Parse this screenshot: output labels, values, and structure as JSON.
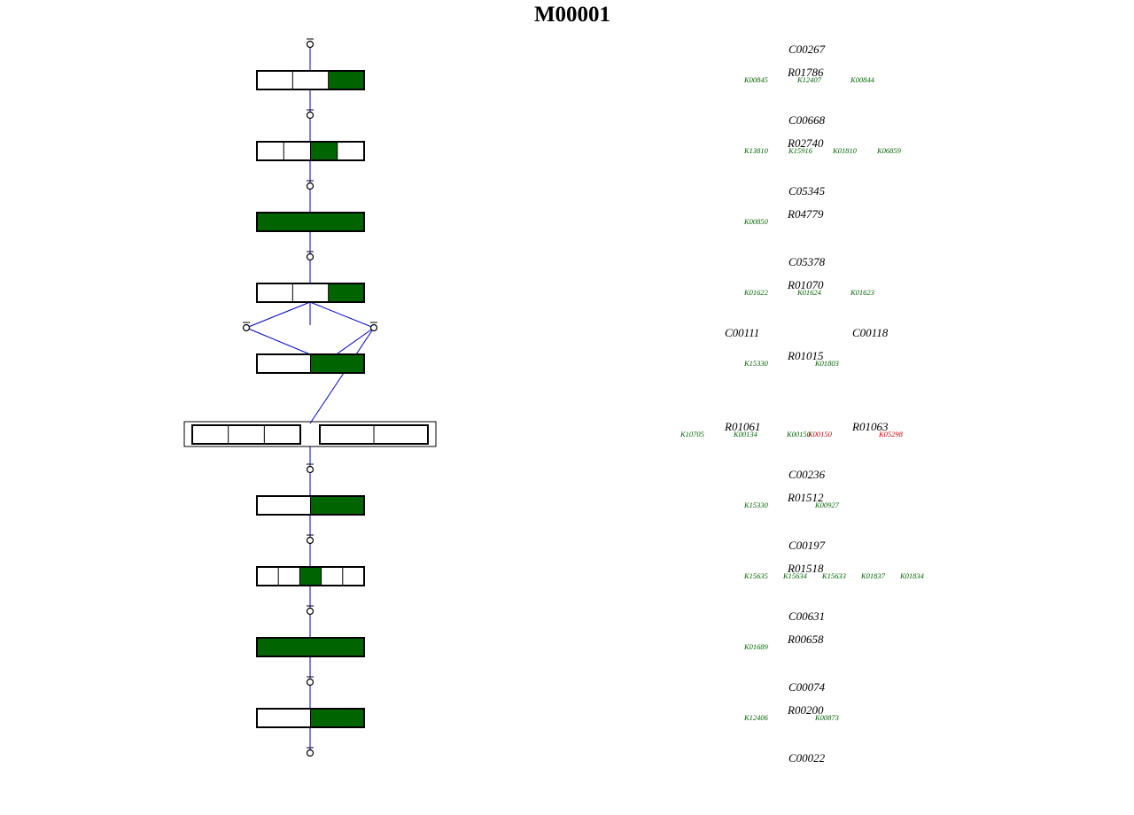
{
  "title": "M00001",
  "colors": {
    "present": "#006400",
    "absent": "#cc0000",
    "edge": "#0000cc"
  },
  "steps": [
    {
      "reaction": "R01786",
      "substrate": "C00267",
      "ko": [
        {
          "id": "K00845",
          "present": true
        },
        {
          "id": "K12407",
          "present": true
        },
        {
          "id": "K00844",
          "present": true
        }
      ],
      "segments": [
        false,
        false,
        true
      ]
    },
    {
      "reaction": "R02740",
      "substrate": "C00668",
      "ko": [
        {
          "id": "K13810",
          "present": true
        },
        {
          "id": "K15916",
          "present": true
        },
        {
          "id": "K01810",
          "present": true
        },
        {
          "id": "K06859",
          "present": true
        }
      ],
      "segments": [
        false,
        false,
        true,
        false
      ]
    },
    {
      "reaction": "R04779",
      "substrate": "C05345",
      "ko": [
        {
          "id": "K00850",
          "present": true
        }
      ],
      "segments": [
        true
      ]
    },
    {
      "reaction": "R01070",
      "substrate": "C05378",
      "ko": [
        {
          "id": "K01622",
          "present": true
        },
        {
          "id": "K01624",
          "present": true
        },
        {
          "id": "K01623",
          "present": true
        }
      ],
      "segments": [
        false,
        false,
        true
      ]
    },
    {
      "reaction": "R01015",
      "substrate": "",
      "ko": [
        {
          "id": "K15330",
          "present": true
        },
        {
          "id": "K01803",
          "present": true
        }
      ],
      "segments": [
        false,
        true
      ]
    },
    {
      "reaction": "R01512",
      "substrate": "C00236",
      "ko": [
        {
          "id": "K15330",
          "present": true
        },
        {
          "id": "K00927",
          "present": true
        }
      ],
      "segments": [
        false,
        true
      ]
    },
    {
      "reaction": "R01518",
      "substrate": "C00197",
      "ko": [
        {
          "id": "K15635",
          "present": true
        },
        {
          "id": "K15634",
          "present": true
        },
        {
          "id": "K15633",
          "present": true
        },
        {
          "id": "K01837",
          "present": true
        },
        {
          "id": "K01834",
          "present": true
        }
      ],
      "segments": [
        false,
        false,
        true,
        false,
        false
      ]
    },
    {
      "reaction": "R00658",
      "substrate": "C00631",
      "ko": [
        {
          "id": "K01689",
          "present": true
        }
      ],
      "segments": [
        true
      ]
    },
    {
      "reaction": "R00200",
      "substrate": "C00074",
      "ko": [
        {
          "id": "K12406",
          "present": true
        },
        {
          "id": "K00873",
          "present": true
        }
      ],
      "segments": [
        false,
        true
      ]
    }
  ],
  "branch_compounds": [
    "C00111",
    "C00118"
  ],
  "complex_step": {
    "reactions": [
      "R01061",
      "R01063"
    ],
    "ko_left": [
      {
        "id": "K10705",
        "present": true
      },
      {
        "id": "K00134",
        "present": true
      }
    ],
    "ko_right": [
      {
        "id": "K00150",
        "present": true
      },
      {
        "id": "K00150",
        "present": false
      },
      {
        "id": "K05298",
        "present": false
      }
    ]
  },
  "final_compound": "C00022"
}
